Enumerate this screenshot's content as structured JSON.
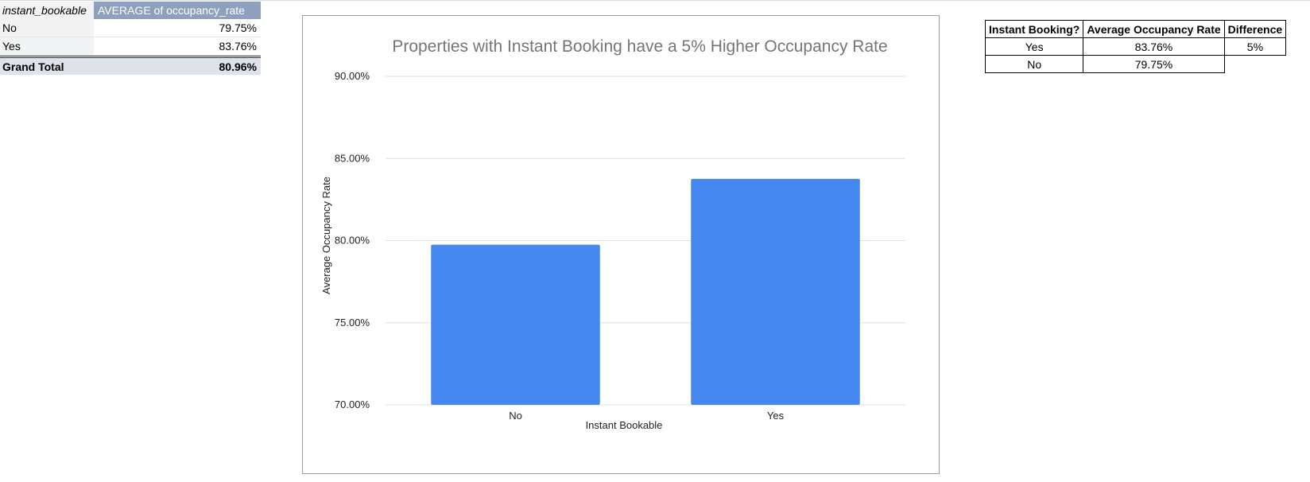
{
  "pivot": {
    "header": [
      "instant_bookable",
      "AVERAGE of occupancy_rate"
    ],
    "rows": [
      {
        "label": "No",
        "value": "79.75%"
      },
      {
        "label": "Yes",
        "value": "83.76%"
      }
    ],
    "total": {
      "label": "Grand Total",
      "value": "80.96%"
    }
  },
  "summary": {
    "header": [
      "Instant Booking?",
      "Average Occupancy Rate",
      "Difference"
    ],
    "rows": [
      [
        "Yes",
        "83.76%",
        "5%"
      ],
      [
        "No",
        "79.75%",
        ""
      ]
    ]
  },
  "colors": {
    "bar": "#4589f0",
    "grid": "#e0e0e0",
    "title": "#757575"
  },
  "chart_data": {
    "type": "bar",
    "title": "Properties with Instant Booking have a 5% Higher Occupancy Rate",
    "xlabel": "Instant Bookable",
    "ylabel": "Average Occupancy Rate",
    "categories": [
      "No",
      "Yes"
    ],
    "values": [
      79.75,
      83.76
    ],
    "ylim": [
      70,
      90
    ],
    "yticks": [
      "70.00%",
      "75.00%",
      "80.00%",
      "85.00%",
      "90.00%"
    ],
    "grid": true,
    "legend": "none"
  }
}
